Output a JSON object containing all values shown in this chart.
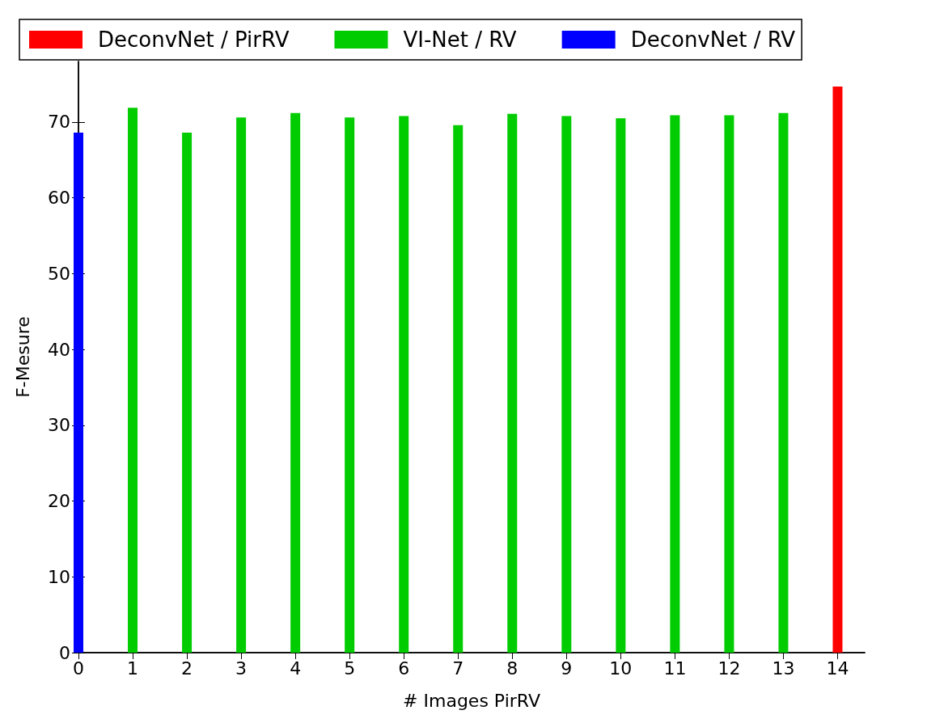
{
  "chart_data": {
    "type": "bar",
    "xlabel": "# Images PirRV",
    "ylabel": "F-Mesure",
    "xlim": [
      0,
      14.5
    ],
    "xticks": [
      0,
      1,
      2,
      3,
      4,
      5,
      6,
      7,
      8,
      9,
      10,
      11,
      12,
      13,
      14
    ],
    "ylim": [
      0,
      78
    ],
    "yticks": [
      0,
      10,
      20,
      30,
      40,
      50,
      60,
      70
    ],
    "grid": false,
    "legend": "top",
    "series": [
      {
        "name": "DeconvNet / PirRV",
        "color": "#ff0000",
        "x": [
          14
        ],
        "values": [
          74.7
        ]
      },
      {
        "name": "VI-Net / RV",
        "color": "#00cc00",
        "x": [
          1,
          2,
          3,
          4,
          5,
          6,
          7,
          8,
          9,
          10,
          11,
          12,
          13
        ],
        "values": [
          71.9,
          68.6,
          70.6,
          71.2,
          70.6,
          70.8,
          69.6,
          71.1,
          70.8,
          70.5,
          70.9,
          70.9,
          71.2
        ]
      },
      {
        "name": "DeconvNet / RV",
        "color": "#0000ff",
        "x": [
          0
        ],
        "values": [
          68.6
        ]
      }
    ]
  }
}
